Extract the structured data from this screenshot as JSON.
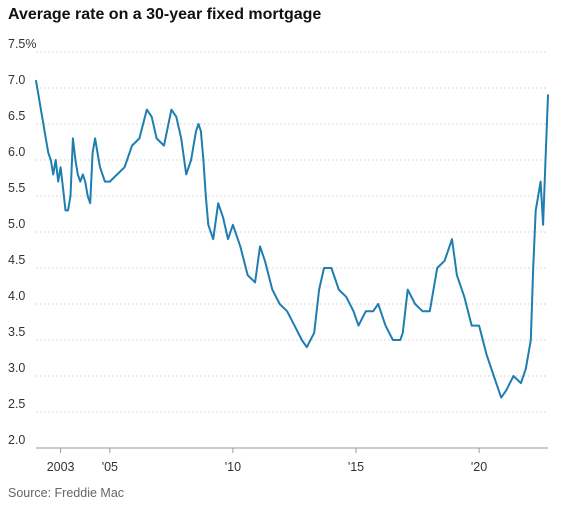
{
  "chart_data": {
    "type": "line",
    "title": "Average rate on a 30-year fixed mortgage",
    "source": "Source: Freddie Mac",
    "y_unit_suffix": "%",
    "ylim": [
      2.0,
      7.5
    ],
    "xlim": [
      2002.0,
      2022.8
    ],
    "yticks": [
      2.0,
      2.5,
      3.0,
      3.5,
      4.0,
      4.5,
      5.0,
      5.5,
      6.0,
      6.5,
      7.0,
      7.5
    ],
    "ytick_labels": [
      "2.0",
      "2.5",
      "3.0",
      "3.5",
      "4.0",
      "4.5",
      "5.0",
      "5.5",
      "6.0",
      "6.5",
      "7.0",
      "7.5%"
    ],
    "xticks": [
      2003,
      2005,
      2010,
      2015,
      2020
    ],
    "xtick_labels": [
      "2003",
      "'05",
      "'10",
      "'15",
      "'20"
    ],
    "grid": true,
    "color": "#1f7eb0",
    "series": [
      {
        "name": "",
        "x": [
          2002.0,
          2002.1,
          2002.2,
          2002.3,
          2002.4,
          2002.5,
          2002.6,
          2002.7,
          2002.8,
          2002.9,
          2003.0,
          2003.1,
          2003.2,
          2003.3,
          2003.4,
          2003.5,
          2003.6,
          2003.7,
          2003.8,
          2003.9,
          2004.0,
          2004.1,
          2004.2,
          2004.3,
          2004.4,
          2004.5,
          2004.6,
          2004.8,
          2005.0,
          2005.3,
          2005.6,
          2005.9,
          2006.2,
          2006.5,
          2006.7,
          2006.9,
          2007.2,
          2007.5,
          2007.7,
          2007.9,
          2008.1,
          2008.3,
          2008.5,
          2008.6,
          2008.7,
          2008.8,
          2008.9,
          2009.0,
          2009.2,
          2009.4,
          2009.6,
          2009.8,
          2010.0,
          2010.3,
          2010.6,
          2010.9,
          2011.1,
          2011.3,
          2011.6,
          2011.9,
          2012.2,
          2012.5,
          2012.8,
          2013.0,
          2013.3,
          2013.5,
          2013.7,
          2014.0,
          2014.3,
          2014.6,
          2014.9,
          2015.1,
          2015.4,
          2015.7,
          2015.9,
          2016.2,
          2016.5,
          2016.8,
          2016.9,
          2017.1,
          2017.4,
          2017.7,
          2018.0,
          2018.3,
          2018.6,
          2018.9,
          2019.1,
          2019.4,
          2019.7,
          2020.0,
          2020.3,
          2020.6,
          2020.9,
          2021.1,
          2021.4,
          2021.7,
          2021.9,
          2022.1,
          2022.2,
          2022.3,
          2022.4,
          2022.5,
          2022.6,
          2022.7,
          2022.8
        ],
        "values": [
          7.1,
          6.9,
          6.7,
          6.5,
          6.3,
          6.1,
          6.0,
          5.8,
          6.0,
          5.7,
          5.9,
          5.6,
          5.3,
          5.3,
          5.5,
          6.3,
          6.0,
          5.8,
          5.7,
          5.8,
          5.7,
          5.5,
          5.4,
          6.1,
          6.3,
          6.1,
          5.9,
          5.7,
          5.7,
          5.8,
          5.9,
          6.2,
          6.3,
          6.7,
          6.6,
          6.3,
          6.2,
          6.7,
          6.6,
          6.3,
          5.8,
          6.0,
          6.4,
          6.5,
          6.4,
          6.0,
          5.5,
          5.1,
          4.9,
          5.4,
          5.2,
          4.9,
          5.1,
          4.8,
          4.4,
          4.3,
          4.8,
          4.6,
          4.2,
          4.0,
          3.9,
          3.7,
          3.5,
          3.4,
          3.6,
          4.2,
          4.5,
          4.5,
          4.2,
          4.1,
          3.9,
          3.7,
          3.9,
          3.9,
          4.0,
          3.7,
          3.5,
          3.5,
          3.6,
          4.2,
          4.0,
          3.9,
          3.9,
          4.5,
          4.6,
          4.9,
          4.4,
          4.1,
          3.7,
          3.7,
          3.3,
          3.0,
          2.7,
          2.8,
          3.0,
          2.9,
          3.1,
          3.5,
          4.5,
          5.3,
          5.5,
          5.7,
          5.1,
          6.0,
          6.9
        ]
      }
    ]
  }
}
